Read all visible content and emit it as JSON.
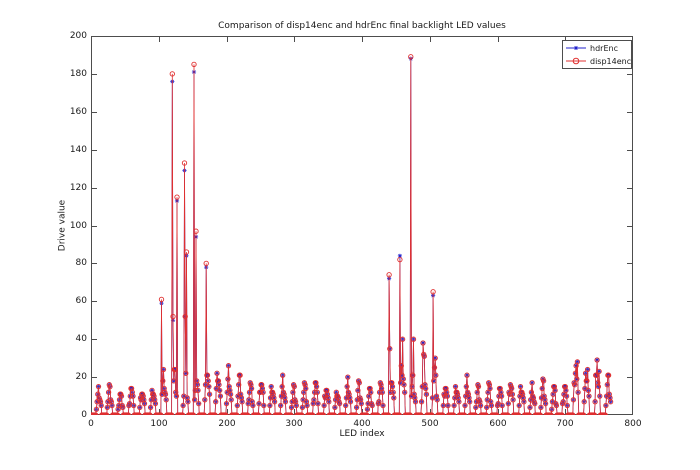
{
  "chart_data": {
    "type": "line",
    "title": "Comparison of disp14enc and hdrEnc final backlight LED values",
    "xlabel": "LED index",
    "ylabel": "Drive value",
    "xlim": [
      0,
      800
    ],
    "ylim": [
      0,
      200
    ],
    "xticks": [
      0,
      100,
      200,
      300,
      400,
      500,
      600,
      700,
      800
    ],
    "yticks": [
      0,
      20,
      40,
      60,
      80,
      100,
      120,
      140,
      160,
      180,
      200
    ],
    "grid": false,
    "legend_position": "top-right",
    "axis_color": "#4d4d4d",
    "n_points": 768,
    "series_meta": [
      {
        "label": "hdrEnc",
        "color": "#2323cc",
        "marker": "asterisk"
      },
      {
        "label": "disp14enc",
        "color": "#e03030",
        "marker": "circle"
      }
    ],
    "pattern": {
      "description": "periodic LED clusters: runs of zero-drive LEDs alternating with low-drive humps",
      "period": 16,
      "zero_run": 8,
      "shape": [
        0.3,
        0.55,
        0.8,
        1.0,
        0.9,
        0.72,
        0.55,
        0.38
      ],
      "jitter_base": 0.75,
      "jitter_span": 0.5
    },
    "cluster_peaks": [
      12,
      14,
      11,
      15,
      13,
      14,
      20,
      22,
      22,
      20,
      25,
      24,
      22,
      20,
      17,
      18,
      15,
      17,
      14,
      16,
      18,
      15,
      13,
      17,
      16,
      14,
      18,
      20,
      28,
      18,
      30,
      25,
      16,
      15,
      17,
      14,
      16,
      15,
      18,
      16,
      14,
      17,
      15,
      16,
      26,
      24,
      25,
      20
    ],
    "spikes": {
      "104": [
        61,
        59
      ],
      "120": [
        180,
        176
      ],
      "121": [
        52,
        50
      ],
      "127": [
        115,
        113
      ],
      "138": [
        133,
        129
      ],
      "139": [
        52,
        52
      ],
      "141": [
        86,
        84
      ],
      "152": [
        185,
        181
      ],
      "155": [
        97,
        94
      ],
      "170": [
        80,
        78
      ],
      "440": [
        74,
        72
      ],
      "441": [
        35,
        35
      ],
      "456": [
        82,
        84
      ],
      "460": [
        40,
        40
      ],
      "472": [
        189,
        188
      ],
      "476": [
        40,
        40
      ],
      "490": [
        38,
        38
      ],
      "505": [
        65,
        63
      ],
      "508": [
        30,
        30
      ],
      "716": [
        26,
        26
      ],
      "718": [
        28,
        28
      ],
      "733": [
        24,
        24
      ],
      "745": [
        21,
        21
      ],
      "750": [
        23,
        23
      ]
    }
  }
}
